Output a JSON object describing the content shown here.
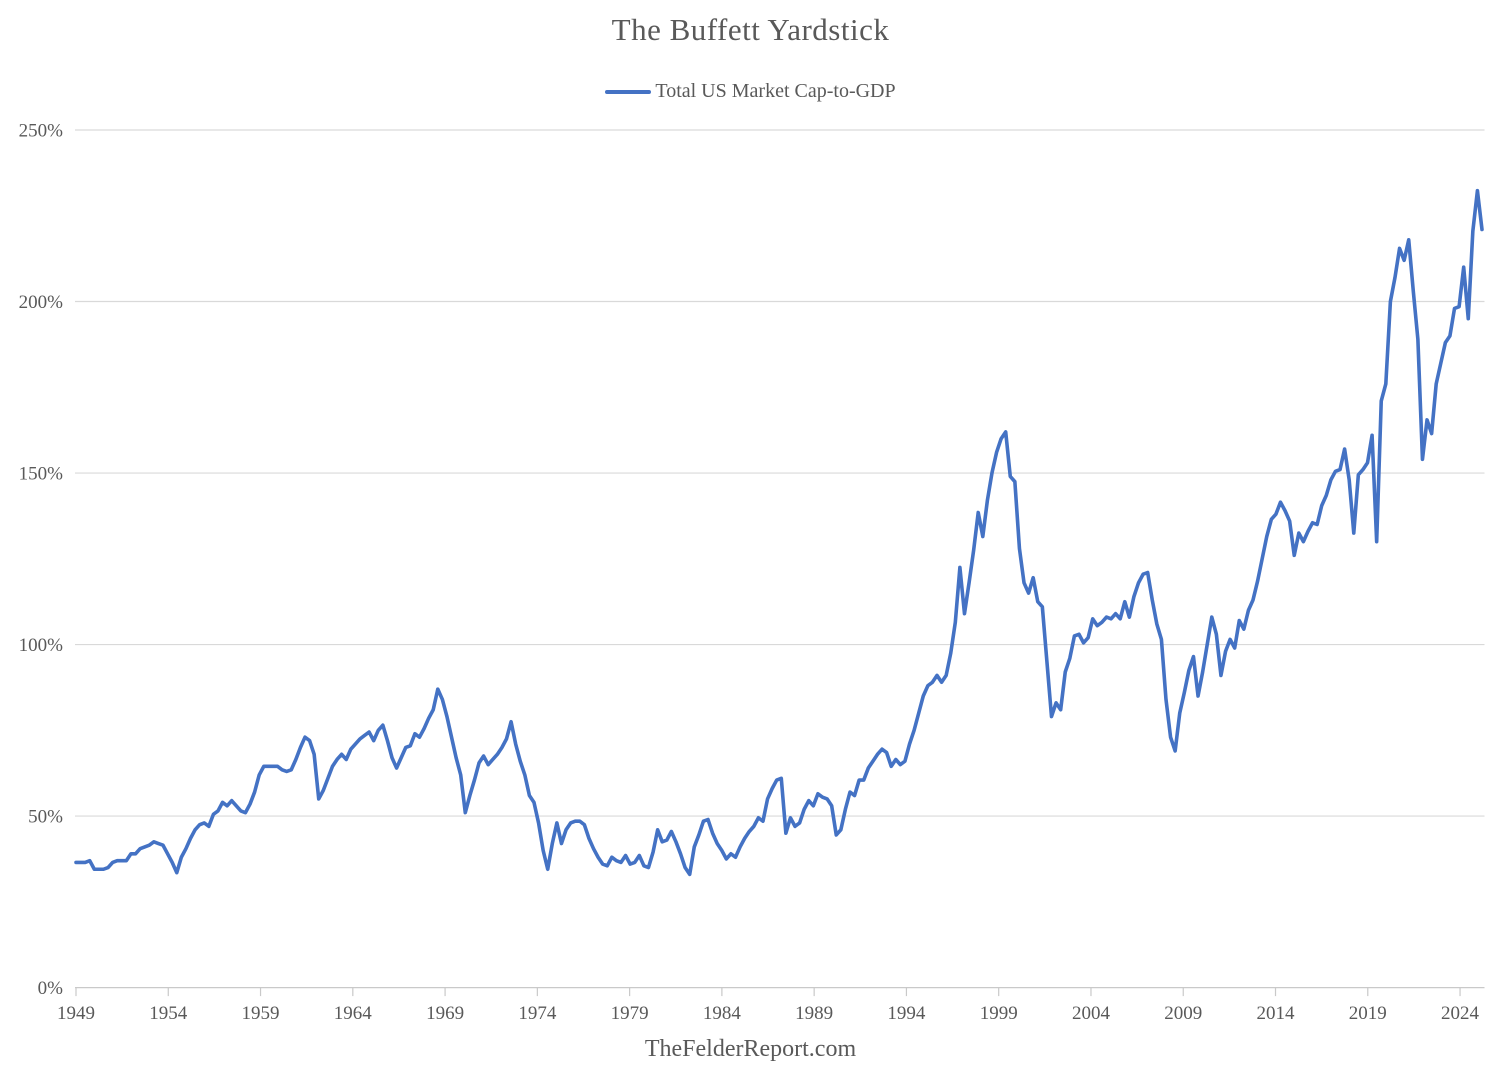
{
  "title": "The Buffett Yardstick",
  "footer": "TheFelderReport.com",
  "colors": {
    "line": "#4472C4",
    "text": "#595959",
    "gridline": "#D9D9D9",
    "axis": "#C9C9C9",
    "background": "#FFFFFF"
  },
  "chart_data": {
    "type": "line",
    "title": "The Buffett Yardstick",
    "legend": [
      {
        "name": "Total US Market Cap-to-GDP",
        "color": "#4472C4"
      }
    ],
    "unit": "%",
    "frequency": "quarterly",
    "period_start": "1949Q1",
    "period_end": "2025Q4",
    "xlabel": "",
    "ylabel": "",
    "ylim": [
      0,
      250
    ],
    "y_ticks": [
      0,
      50,
      100,
      150,
      200,
      250
    ],
    "y_tick_labels": [
      "0%",
      "50%",
      "100%",
      "150%",
      "200%",
      "250%"
    ],
    "x_tick_years": [
      1949,
      1954,
      1959,
      1964,
      1969,
      1974,
      1979,
      1984,
      1989,
      1994,
      1999,
      2004,
      2009,
      2014,
      2019,
      2024
    ],
    "grid": true,
    "legend_position": "top-center",
    "values": [
      36.5,
      36.5,
      36.5,
      37,
      34.5,
      34.5,
      34.5,
      35,
      36.5,
      37,
      37,
      37,
      39,
      39,
      40.5,
      41,
      41.5,
      42.5,
      42,
      41.5,
      39,
      36.5,
      33.5,
      38,
      40.5,
      43.5,
      46,
      47.5,
      48,
      47,
      50.5,
      51.5,
      54,
      53,
      54.5,
      53,
      51.5,
      51,
      53.5,
      57,
      62,
      64.5,
      64.5,
      64.5,
      64.5,
      63.5,
      63,
      63.5,
      66.5,
      70,
      73,
      72,
      68,
      55,
      57.5,
      61,
      64.5,
      66.5,
      68,
      66.5,
      69.5,
      71,
      72.5,
      73.5,
      74.5,
      72,
      75,
      76.5,
      72,
      67,
      64,
      67,
      70,
      70.5,
      74,
      73,
      75.5,
      78.5,
      81,
      87,
      84,
      79,
      73,
      67,
      62,
      51,
      56,
      60.5,
      65.5,
      67.5,
      65,
      66.5,
      68,
      70,
      72.5,
      77.5,
      71,
      66,
      62,
      56,
      54,
      48,
      40,
      34.5,
      42,
      48,
      42,
      46,
      48,
      48.5,
      48.5,
      47.5,
      43.5,
      40.5,
      38,
      36,
      35.5,
      38,
      37,
      36.5,
      38.5,
      36,
      36.5,
      38.5,
      35.5,
      35,
      39.5,
      46,
      42.5,
      43,
      45.5,
      42.5,
      39,
      35,
      33,
      41,
      44.5,
      48.5,
      49,
      45,
      42,
      40,
      37.5,
      39,
      38,
      41,
      43.5,
      45.5,
      47,
      49.5,
      48.5,
      55,
      58,
      60.5,
      61,
      45,
      49.5,
      47,
      48,
      52,
      54.5,
      53,
      56.5,
      55.5,
      55,
      53,
      44.5,
      46,
      52,
      57,
      56,
      60.5,
      60.5,
      64,
      66,
      68,
      69.5,
      68.5,
      64.5,
      66.5,
      65,
      66,
      71,
      75,
      80,
      85,
      88,
      89,
      91,
      89,
      91,
      97.5,
      106.5,
      122.5,
      109,
      118,
      127.5,
      138.5,
      131.5,
      142,
      150,
      156,
      160,
      162,
      149,
      147.5,
      128,
      118,
      115,
      119.5,
      112.5,
      111,
      95,
      79,
      83,
      81,
      92,
      96,
      102.5,
      103,
      100.5,
      102,
      107.5,
      105.5,
      106.5,
      108,
      107.5,
      109,
      107.5,
      112.5,
      108,
      114,
      118,
      120.5,
      121,
      113,
      106,
      101.5,
      84,
      73,
      69,
      80,
      86,
      92.5,
      96.5,
      85,
      92,
      100,
      108,
      103,
      91,
      98,
      101.5,
      99,
      107,
      104.5,
      110,
      113,
      118.5,
      125,
      131.5,
      136.5,
      138,
      141.5,
      139,
      136,
      126,
      132.5,
      130,
      133,
      135.5,
      135,
      140.5,
      143.5,
      148,
      150.5,
      151,
      157,
      148,
      132.5,
      149.5,
      151,
      153,
      161,
      130,
      171,
      176,
      200,
      207,
      215.5,
      212,
      218,
      203,
      189,
      154,
      165.5,
      161.5,
      176,
      182,
      188,
      190,
      198,
      198.5,
      210,
      195,
      220.5,
      232.3,
      221
    ]
  }
}
